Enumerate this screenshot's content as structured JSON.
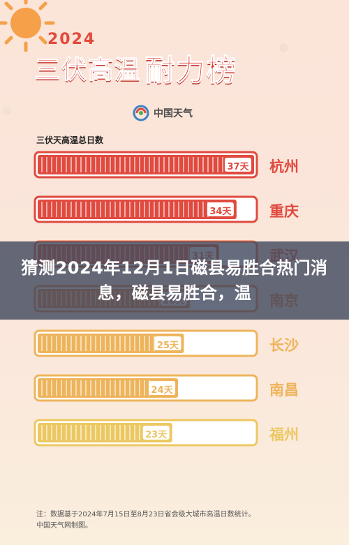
{
  "header": {
    "year": "2024",
    "title_part1": "三伏高温",
    "title_part2": "耐力榜",
    "logo_text": "中国天气",
    "subtitle": "三伏天高温总日数"
  },
  "colors": {
    "red": "#e04a3f",
    "orange_red": "#ea6a48",
    "orange": "#ef9455",
    "amber": "#eeb45c",
    "yellow": "#ecc862"
  },
  "chart_data": {
    "type": "bar",
    "title": "三伏天高温总日数",
    "categories": [
      "杭州",
      "重庆",
      "武汉",
      "南京",
      "长沙",
      "南昌",
      "福州"
    ],
    "values": [
      37,
      34,
      31,
      26,
      25,
      24,
      23
    ],
    "value_labels": [
      "37天",
      "34天",
      "31天",
      "26天",
      "25天",
      "24天",
      "23天"
    ],
    "xlim": [
      0,
      37
    ]
  },
  "banner": {
    "text": "猜测2024年12月1日磁县易胜合热门消息，磁县易胜合，温"
  },
  "footnote": {
    "line1": "注：数据基于2024年7月15日至8月23日省会级大城市高温日数统计。",
    "line2": "中国天气网制图。"
  }
}
